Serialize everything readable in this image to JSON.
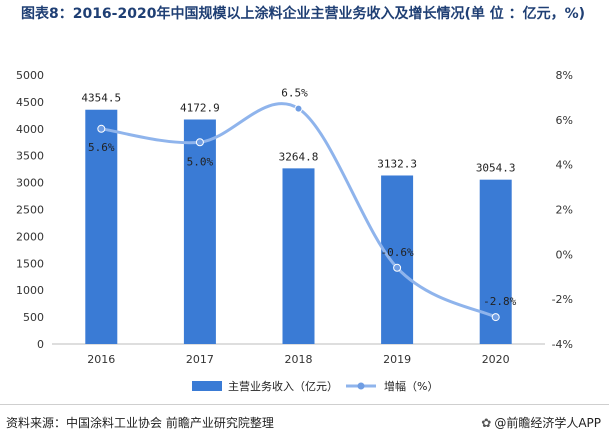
{
  "title": "图表8：2016-2020年中国规模以上涂料企业主营业务收入及增长情况(单 位 ：亿元，%)",
  "footer": {
    "source": "资料来源：中国涂料工业协会 前瞻产业研究院整理",
    "brand": "@前瞻经济学人APP",
    "brand_icon": "paw-icon"
  },
  "chart_data": {
    "type": "bar+line",
    "categories": [
      "2016",
      "2017",
      "2018",
      "2019",
      "2020"
    ],
    "series": [
      {
        "name": "主营业务收入（亿元）",
        "type": "bar",
        "axis": "left",
        "values": [
          4354.5,
          4172.9,
          3264.8,
          3132.3,
          3054.3
        ],
        "labels": [
          "4354.5",
          "4172.9",
          "3264.8",
          "3132.3",
          "3054.3"
        ],
        "color": "#3a7bd5"
      },
      {
        "name": "增幅（%）",
        "type": "line",
        "axis": "right",
        "values": [
          5.6,
          5.0,
          6.5,
          -0.6,
          -2.8
        ],
        "labels": [
          "5.6%",
          "5.0%",
          "6.5%",
          "-0.6%",
          "-2.8%"
        ],
        "color": "#8fb4ec"
      }
    ],
    "y_left": {
      "min": 0,
      "max": 5000,
      "ticks": [
        "0",
        "500",
        "1000",
        "1500",
        "2000",
        "2500",
        "3000",
        "3500",
        "4000",
        "4500",
        "5000"
      ]
    },
    "y_right": {
      "min": -4,
      "max": 8,
      "ticks": [
        "-4%",
        "-2%",
        "0%",
        "2%",
        "4%",
        "6%",
        "8%"
      ]
    },
    "grid": false,
    "legend_position": "bottom"
  }
}
